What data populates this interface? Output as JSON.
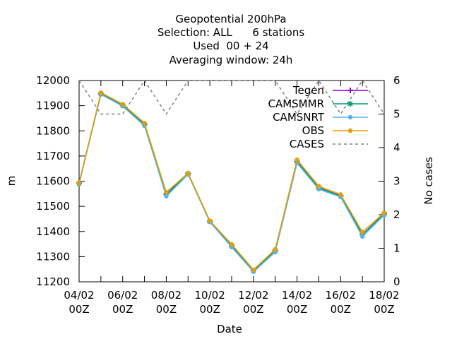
{
  "chart_data": {
    "type": "line",
    "title_lines": [
      "Geopotential 200hPa",
      "Selection: ALL      6 stations",
      "Used  00 + 24",
      "Averaging window: 24h"
    ],
    "xlabel": "Date",
    "ylabel": "m",
    "y2label": "No cases",
    "grid": false,
    "legend_position": "top-right",
    "x": [
      "04/02 00Z",
      "05/02 00Z",
      "06/02 00Z",
      "07/02 00Z",
      "08/02 00Z",
      "09/02 00Z",
      "10/02 00Z",
      "11/02 00Z",
      "12/02 00Z",
      "13/02 00Z",
      "14/02 00Z",
      "15/02 00Z",
      "16/02 00Z",
      "17/02 00Z",
      "18/02 00Z"
    ],
    "x_tick_labels": [
      {
        "index": 0,
        "line1": "04/02",
        "line2": "00Z"
      },
      {
        "index": 2,
        "line1": "06/02",
        "line2": "00Z"
      },
      {
        "index": 4,
        "line1": "08/02",
        "line2": "00Z"
      },
      {
        "index": 6,
        "line1": "10/02",
        "line2": "00Z"
      },
      {
        "index": 8,
        "line1": "12/02",
        "line2": "00Z"
      },
      {
        "index": 10,
        "line1": "14/02",
        "line2": "00Z"
      },
      {
        "index": 12,
        "line1": "16/02",
        "line2": "00Z"
      },
      {
        "index": 14,
        "line1": "18/02",
        "line2": "00Z"
      }
    ],
    "ylim": [
      11200,
      12000
    ],
    "y_ticks": [
      11200,
      11300,
      11400,
      11500,
      11600,
      11700,
      11800,
      11900,
      12000
    ],
    "y2lim": [
      0,
      6
    ],
    "y2_ticks": [
      0,
      1,
      2,
      3,
      4,
      5,
      6
    ],
    "series": [
      {
        "name": "Tegen",
        "axis": "y1",
        "color": "#9400d3",
        "marker": "plus",
        "dash": false,
        "values": [
          11592,
          11948,
          11902,
          11826,
          11548,
          11630,
          11440,
          11344,
          11245,
          11325,
          11678,
          11574,
          11542,
          11388,
          11470
        ]
      },
      {
        "name": "CAMSMMR",
        "axis": "y1",
        "color": "#009e73",
        "marker": "star",
        "dash": false,
        "values": [
          11591,
          11947,
          11901,
          11825,
          11547,
          11629,
          11440,
          11343,
          11244,
          11324,
          11677,
          11573,
          11541,
          11387,
          11469
        ]
      },
      {
        "name": "CAMSNRT",
        "axis": "y1",
        "color": "#56b4e9",
        "marker": "circle",
        "dash": false,
        "values": [
          11590,
          11945,
          11898,
          11820,
          11540,
          11627,
          11438,
          11338,
          11240,
          11318,
          11672,
          11568,
          11537,
          11380,
          11465
        ]
      },
      {
        "name": "OBS",
        "axis": "y1",
        "color": "#e69f00",
        "marker": "circle",
        "dash": false,
        "values": [
          11593,
          11952,
          11906,
          11831,
          11556,
          11632,
          11443,
          11349,
          11248,
          11329,
          11685,
          11580,
          11547,
          11398,
          11474
        ]
      },
      {
        "name": "CASES",
        "axis": "y2",
        "color": "#808080",
        "marker": "none",
        "dash": true,
        "values": [
          6,
          5,
          5,
          6,
          5,
          6,
          6,
          6,
          6,
          6,
          5,
          6,
          5,
          6,
          5
        ]
      }
    ]
  }
}
